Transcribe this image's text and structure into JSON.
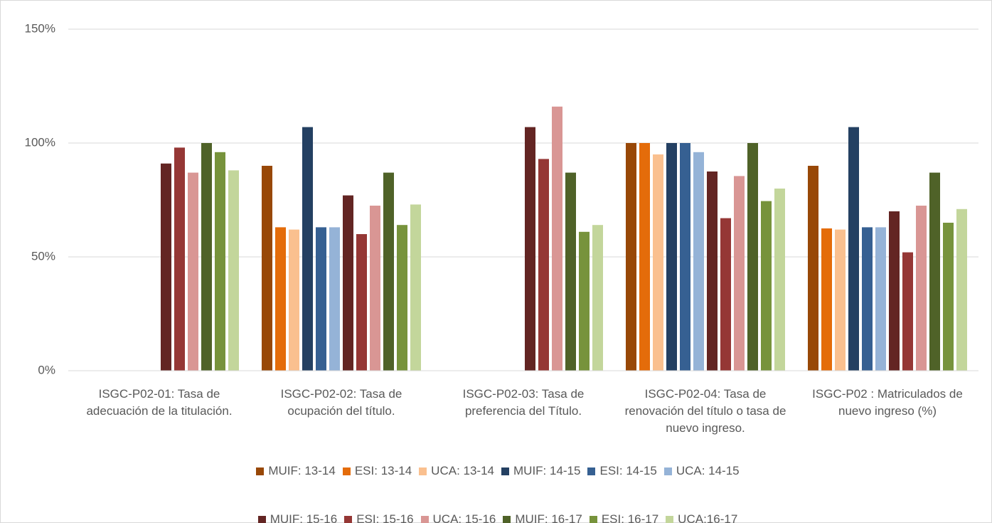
{
  "chart_data": {
    "type": "bar",
    "categories": [
      "ISGC-P02-01: Tasa de adecuación de la titulación.",
      "ISGC-P02-02: Tasa de ocupación del título.",
      "ISGC-P02-03: Tasa de preferencia del Título.",
      "ISGC-P02-04: Tasa de renovación del título o tasa de nuevo ingreso.",
      "ISGC-P02 : Matriculados de nuevo ingreso (%)"
    ],
    "series": [
      {
        "name": "MUIF: 13-14",
        "color": "#984807",
        "values": [
          null,
          90,
          null,
          100,
          90
        ]
      },
      {
        "name": "ESI: 13-14",
        "color": "#e46c0a",
        "values": [
          null,
          63,
          null,
          100,
          62.5
        ]
      },
      {
        "name": "UCA: 13-14",
        "color": "#fac08f",
        "values": [
          null,
          62,
          null,
          95,
          62
        ]
      },
      {
        "name": "MUIF: 14-15",
        "color": "#244062",
        "values": [
          null,
          107,
          null,
          100,
          107
        ]
      },
      {
        "name": "ESI: 14-15",
        "color": "#366092",
        "values": [
          null,
          63,
          null,
          100,
          63
        ]
      },
      {
        "name": "UCA: 14-15",
        "color": "#95b3d7",
        "values": [
          null,
          63,
          null,
          96,
          63
        ]
      },
      {
        "name": "MUIF: 15-16",
        "color": "#632523",
        "values": [
          91,
          77,
          107,
          87.5,
          70
        ]
      },
      {
        "name": "ESI: 15-16",
        "color": "#953735",
        "values": [
          98,
          60,
          93,
          67,
          52
        ]
      },
      {
        "name": "UCA: 15-16",
        "color": "#d99694",
        "values": [
          87,
          72.5,
          116,
          85.5,
          72.5
        ]
      },
      {
        "name": "MUIF: 16-17",
        "color": "#4f6228",
        "values": [
          100,
          87,
          87,
          100,
          87
        ]
      },
      {
        "name": "ESI: 16-17",
        "color": "#77933c",
        "values": [
          96,
          64,
          61,
          74.5,
          65
        ]
      },
      {
        "name": "UCA:16-17",
        "color": "#c3d69b",
        "values": [
          88,
          73,
          64,
          80,
          71
        ]
      }
    ],
    "ylim": [
      0,
      150
    ],
    "yticks": [
      {
        "value": 0,
        "label": "0%"
      },
      {
        "value": 50,
        "label": "50%"
      },
      {
        "value": 100,
        "label": "100%"
      },
      {
        "value": 150,
        "label": "150%"
      }
    ],
    "grid": true
  }
}
